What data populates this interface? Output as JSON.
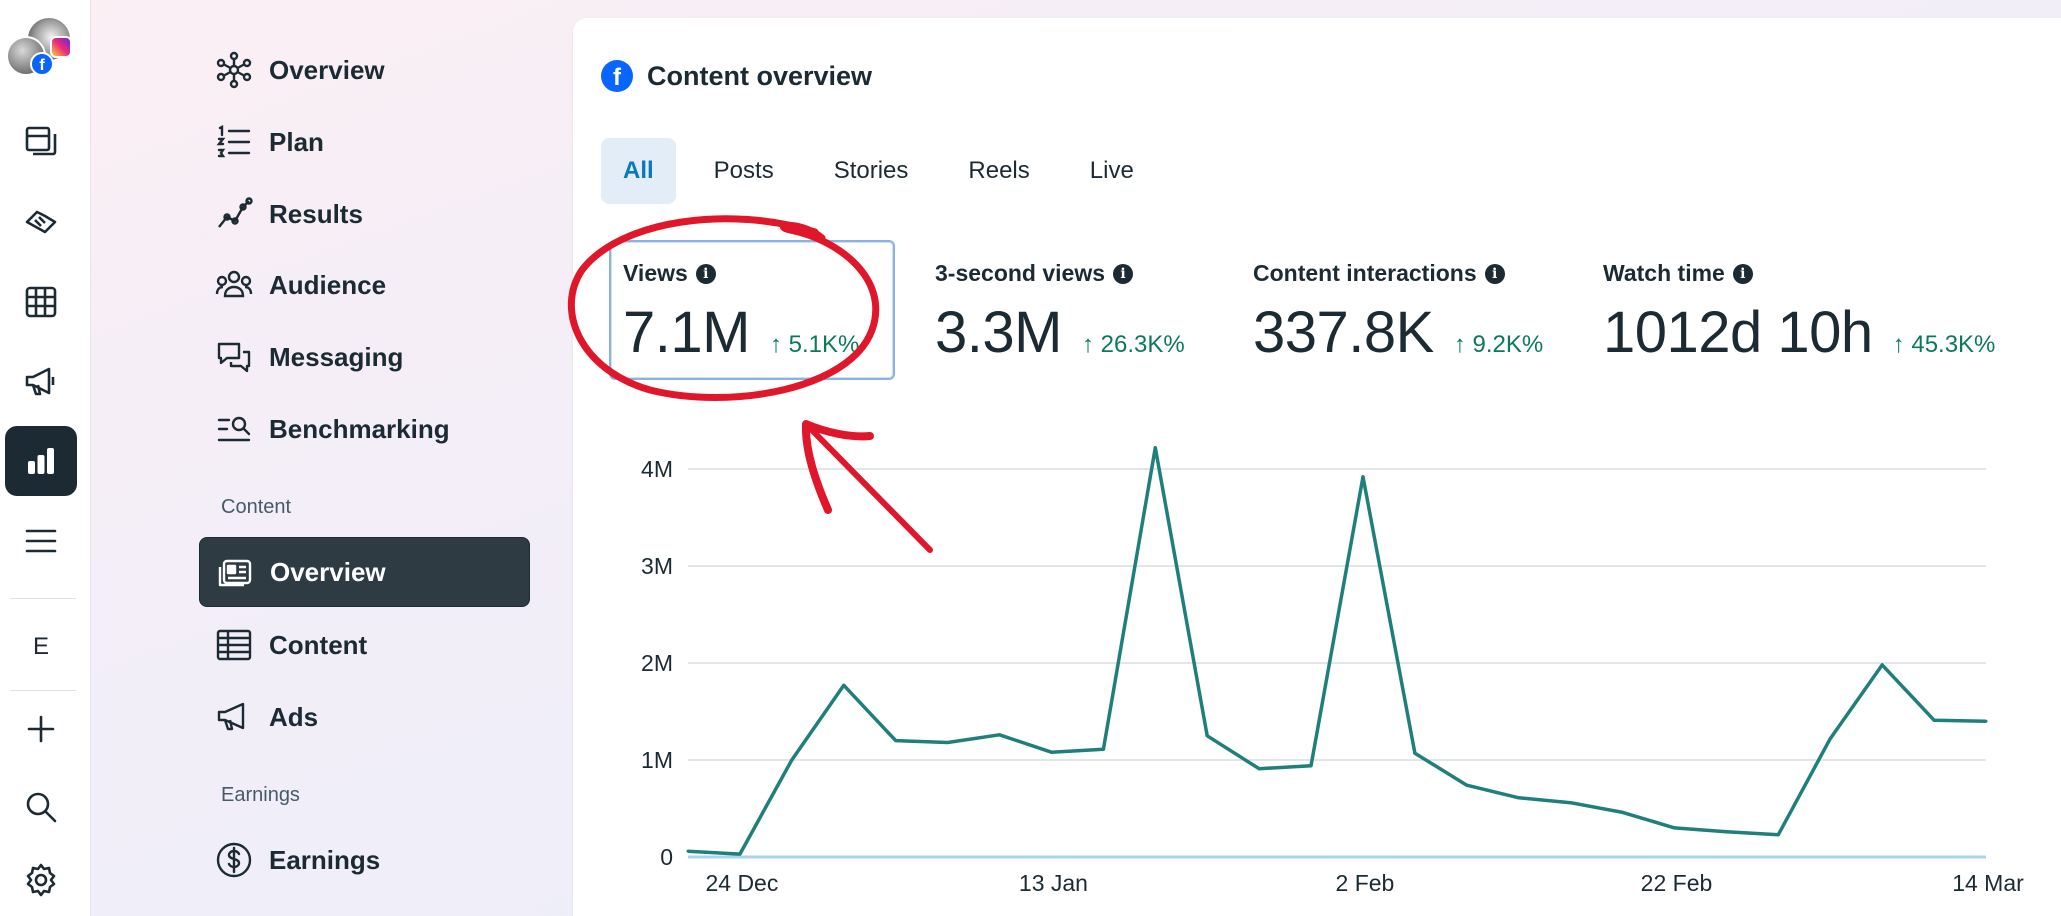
{
  "app": {
    "rail": {
      "items": [
        {
          "name": "pages-icon"
        },
        {
          "name": "handshake-icon"
        },
        {
          "name": "table-grid-icon"
        },
        {
          "name": "megaphone-icon"
        },
        {
          "name": "insights-chart-icon",
          "active": true
        },
        {
          "name": "menu-icon"
        }
      ],
      "letter": "E",
      "bottom": [
        {
          "name": "plus-icon"
        },
        {
          "name": "search-icon"
        },
        {
          "name": "gear-icon"
        }
      ]
    }
  },
  "nav": {
    "items": [
      {
        "label": "Overview",
        "icon": "overview-network-icon"
      },
      {
        "label": "Plan",
        "icon": "list-numbered-icon"
      },
      {
        "label": "Results",
        "icon": "line-trend-icon"
      },
      {
        "label": "Audience",
        "icon": "people-group-icon"
      },
      {
        "label": "Messaging",
        "icon": "chat-bubbles-icon"
      },
      {
        "label": "Benchmarking",
        "icon": "benchmark-search-icon"
      }
    ],
    "content_section": "Content",
    "content_items": [
      {
        "label": "Overview",
        "icon": "content-card-icon",
        "selected": true
      },
      {
        "label": "Content",
        "icon": "table-icon"
      },
      {
        "label": "Ads",
        "icon": "megaphone-icon"
      }
    ],
    "earnings_section": "Earnings",
    "earnings_items": [
      {
        "label": "Earnings",
        "icon": "dollar-circle-icon"
      }
    ]
  },
  "card": {
    "title": "Content overview",
    "tabs": [
      "All",
      "Posts",
      "Stories",
      "Reels",
      "Live"
    ],
    "active_tab": "All",
    "metrics": [
      {
        "label": "Views",
        "value": "7.1M",
        "change": "↑ 5.1K%"
      },
      {
        "label": "3-second views",
        "value": "3.3M",
        "change": "↑ 26.3K%"
      },
      {
        "label": "Content interactions",
        "value": "337.8K",
        "change": "↑ 9.2K%"
      },
      {
        "label": "Watch time",
        "value": "1012d 10h",
        "change": "↑ 45.3K%"
      }
    ]
  },
  "colors": {
    "accent": "#0a78be",
    "positive": "#0c7a57",
    "line": "#1f7f7b",
    "annotation": "#e0162b"
  },
  "chart_data": {
    "type": "line",
    "title": "",
    "xlabel": "",
    "ylabel": "",
    "ylim": [
      0,
      4000000
    ],
    "yticks": [
      {
        "label": "0",
        "value": 0
      },
      {
        "label": "1M",
        "value": 1000000
      },
      {
        "label": "2M",
        "value": 2000000
      },
      {
        "label": "3M",
        "value": 3000000
      },
      {
        "label": "4M",
        "value": 4000000
      }
    ],
    "xticks": [
      {
        "label": "24 Dec",
        "index": 1
      },
      {
        "label": "13 Jan",
        "index": 7
      },
      {
        "label": "2 Feb",
        "index": 13
      },
      {
        "label": "22 Feb",
        "index": 19
      },
      {
        "label": "14 Mar",
        "index": 25
      }
    ],
    "series": [
      {
        "name": "Views",
        "values": [
          60000,
          30000,
          1000000,
          1770000,
          1200000,
          1180000,
          1260000,
          1080000,
          1110000,
          4220000,
          1250000,
          910000,
          940000,
          3920000,
          1070000,
          740000,
          610000,
          560000,
          460000,
          300000,
          260000,
          230000,
          1220000,
          1980000,
          1410000,
          1400000
        ]
      }
    ]
  }
}
